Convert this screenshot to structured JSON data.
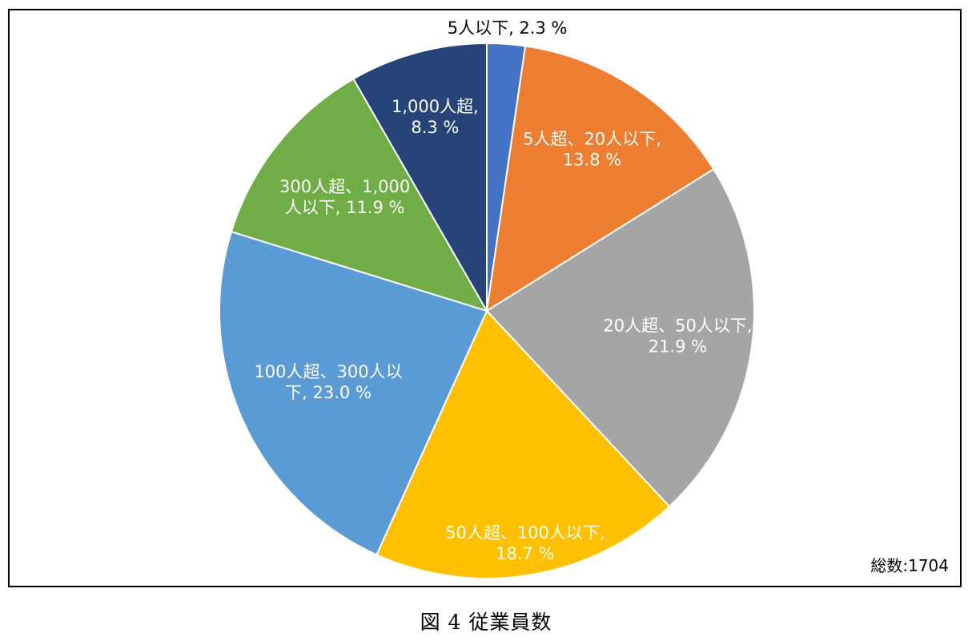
{
  "chart_data": {
    "type": "pie",
    "slices": [
      {
        "name": "5人以下",
        "value": 2.3,
        "color": "#4472C4",
        "label_lines": [
          "5人以下, 2.3 %"
        ],
        "label_color": "#000000"
      },
      {
        "name": "5人超、20人以下",
        "value": 13.8,
        "color": "#ED7D31",
        "label_lines": [
          "5人超、20人以下,",
          "13.8 %"
        ],
        "label_color": "#ffffff"
      },
      {
        "name": "20人超、50人以下",
        "value": 21.9,
        "color": "#A5A5A5",
        "label_lines": [
          "20人超、50人以下,",
          "21.9 %"
        ],
        "label_color": "#ffffff"
      },
      {
        "name": "50人超、100人以下",
        "value": 18.7,
        "color": "#FFC000",
        "label_lines": [
          "50人超、100人以下,",
          "18.7 %"
        ],
        "label_color": "#ffffff"
      },
      {
        "name": "100人超、300人以下",
        "value": 23.0,
        "color": "#5B9BD5",
        "label_lines": [
          "100人超、300人以",
          "下, 23.0 %"
        ],
        "label_color": "#ffffff"
      },
      {
        "name": "300人超、1,000人以下",
        "value": 11.9,
        "color": "#70AD47",
        "label_lines": [
          "300人超、1,000",
          "人以下, 11.9 %"
        ],
        "label_color": "#ffffff"
      },
      {
        "name": "1,000人超",
        "value": 8.3,
        "color": "#264478",
        "label_lines": [
          "1,000人超,",
          "8.3 %"
        ],
        "label_color": "#ffffff"
      }
    ],
    "start_angle_deg": 0,
    "direction": "clockwise",
    "legend": "none",
    "total_text": "総数:1704"
  },
  "caption": "図 4  従業員数"
}
